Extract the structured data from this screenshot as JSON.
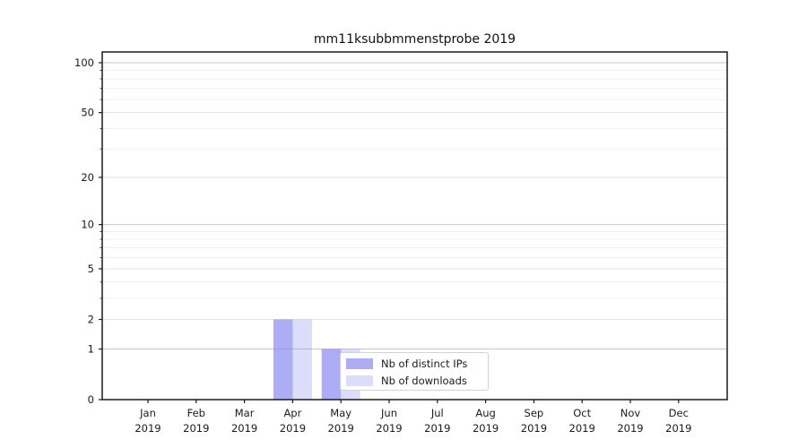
{
  "chart_data": {
    "type": "bar",
    "title": "mm11ksubbmmenstprobe 2019",
    "categories": [
      "Jan",
      "Feb",
      "Mar",
      "Apr",
      "May",
      "Jun",
      "Jul",
      "Aug",
      "Sep",
      "Oct",
      "Nov",
      "Dec"
    ],
    "year_label": "2019",
    "series": [
      {
        "name": "Nb of distinct IPs",
        "values": [
          0,
          0,
          0,
          2,
          1,
          0,
          0,
          0,
          0,
          0,
          0,
          0
        ],
        "color_rgb": "130,130,240",
        "alpha": 0.66
      },
      {
        "name": "Nb of downloads",
        "values": [
          0,
          0,
          0,
          2,
          1,
          0,
          0,
          0,
          0,
          0,
          0,
          0
        ],
        "color_rgb": "130,130,240",
        "alpha": 0.28
      }
    ],
    "yscale": "log1p",
    "ytick_labels": [
      "0",
      "1",
      "2",
      "5",
      "10",
      "20",
      "50",
      "100"
    ],
    "ytick_values": [
      0,
      1,
      2,
      5,
      10,
      20,
      50,
      100
    ],
    "grid": {
      "on": true,
      "major_values": [
        1,
        10,
        100
      ],
      "labeled_minor_values": [
        2,
        5,
        20,
        50
      ],
      "minor_values": [
        3,
        4,
        6,
        7,
        8,
        9,
        30,
        40,
        60,
        70,
        80,
        90
      ],
      "major_color": "#c6c6c6",
      "labeled_minor_color": "#e3e3e3",
      "minor_color": "#efefef"
    },
    "legend_position": "lower center inside plot",
    "axis_color": "#1a1a1a",
    "background_color": "#ffffff"
  }
}
